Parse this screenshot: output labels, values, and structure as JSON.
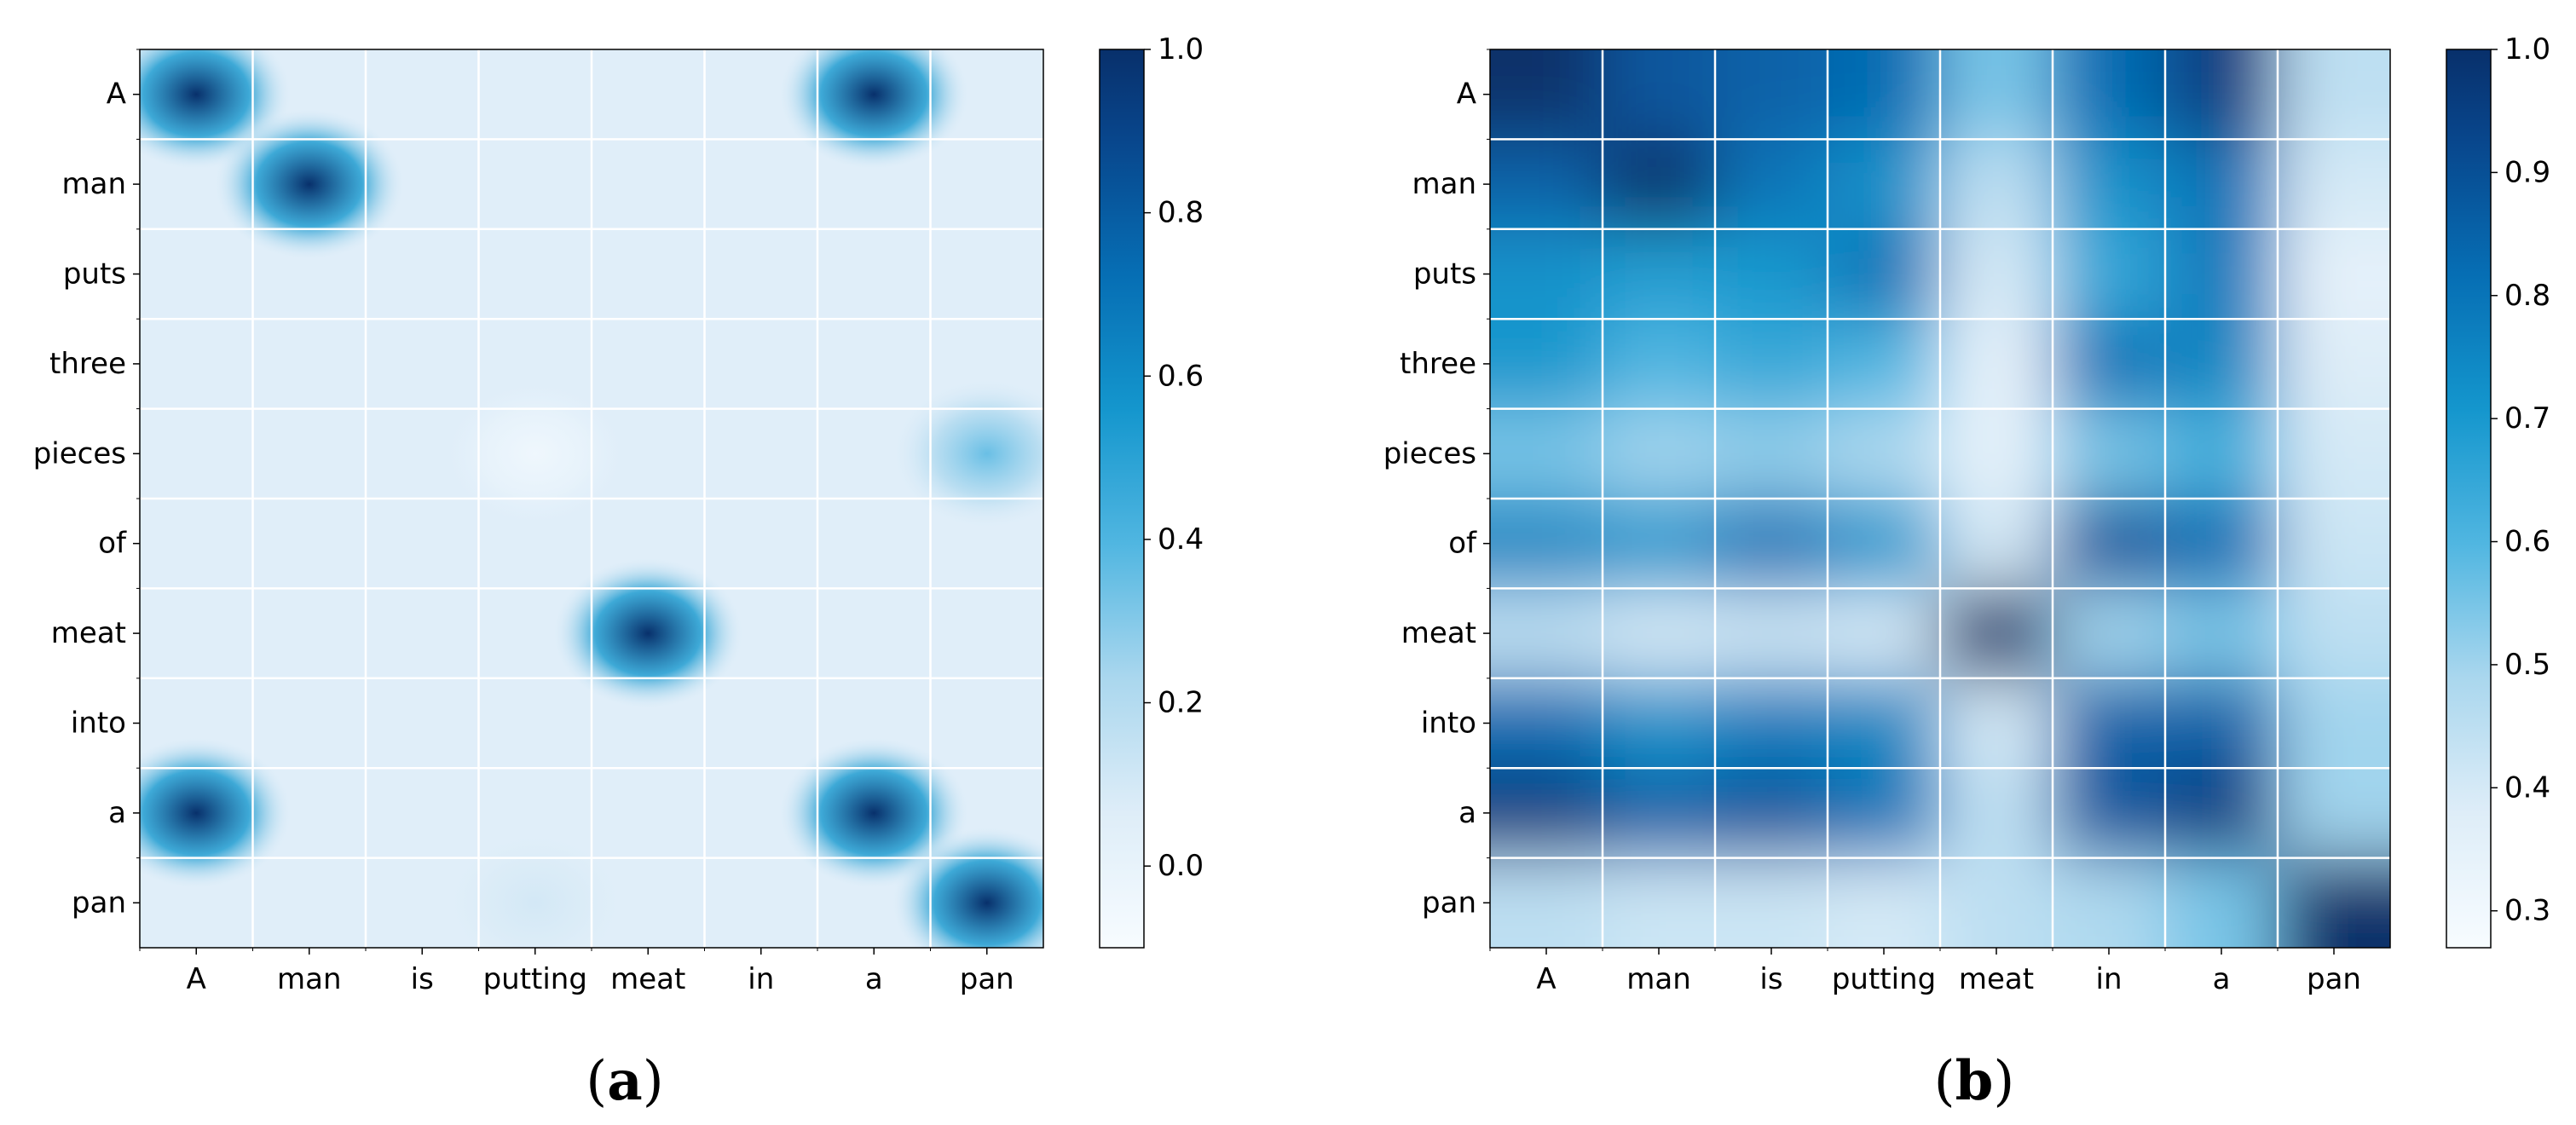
{
  "chart_data": [
    {
      "type": "heatmap",
      "panel_label": "a",
      "rows": [
        "A",
        "man",
        "puts",
        "three",
        "pieces",
        "of",
        "meat",
        "into",
        "a",
        "pan"
      ],
      "cols": [
        "A",
        "man",
        "is",
        "putting",
        "meat",
        "in",
        "a",
        "pan"
      ],
      "background": 0.05,
      "blobs": [
        {
          "row": 0,
          "col": 0,
          "value": 1.0
        },
        {
          "row": 0,
          "col": 6,
          "value": 1.0
        },
        {
          "row": 1,
          "col": 1,
          "value": 1.0
        },
        {
          "row": 4,
          "col": 3,
          "value": -0.05
        },
        {
          "row": 4,
          "col": 7,
          "value": 0.35
        },
        {
          "row": 6,
          "col": 4,
          "value": 1.0
        },
        {
          "row": 8,
          "col": 0,
          "value": 1.0
        },
        {
          "row": 8,
          "col": 6,
          "value": 1.0
        },
        {
          "row": 9,
          "col": 3,
          "value": 0.1
        },
        {
          "row": 9,
          "col": 7,
          "value": 1.0
        }
      ],
      "colorbar": {
        "min": -0.1,
        "max": 1.0,
        "ticks": [
          "1.0",
          "0.8",
          "0.6",
          "0.4",
          "0.2",
          "0.0"
        ]
      },
      "grid": true
    },
    {
      "type": "heatmap",
      "panel_label": "b",
      "rows": [
        "A",
        "man",
        "puts",
        "three",
        "pieces",
        "of",
        "meat",
        "into",
        "a",
        "pan"
      ],
      "cols": [
        "A",
        "man",
        "is",
        "putting",
        "meat",
        "in",
        "a",
        "pan"
      ],
      "values": [
        [
          1.0,
          0.88,
          0.85,
          0.82,
          0.55,
          0.82,
          0.95,
          0.45
        ],
        [
          0.85,
          1.0,
          0.8,
          0.72,
          0.45,
          0.72,
          0.8,
          0.4
        ],
        [
          0.72,
          0.68,
          0.7,
          0.8,
          0.4,
          0.65,
          0.78,
          0.35
        ],
        [
          0.7,
          0.6,
          0.65,
          0.6,
          0.35,
          0.8,
          0.75,
          0.38
        ],
        [
          0.55,
          0.5,
          0.52,
          0.48,
          0.35,
          0.55,
          0.62,
          0.4
        ],
        [
          0.75,
          0.7,
          0.8,
          0.7,
          0.4,
          0.88,
          0.82,
          0.42
        ],
        [
          0.45,
          0.4,
          0.42,
          0.4,
          1.0,
          0.5,
          0.55,
          0.45
        ],
        [
          0.82,
          0.72,
          0.78,
          0.75,
          0.4,
          0.85,
          0.85,
          0.5
        ],
        [
          0.95,
          0.85,
          0.88,
          0.8,
          0.45,
          0.88,
          0.95,
          0.5
        ],
        [
          0.45,
          0.42,
          0.42,
          0.4,
          0.45,
          0.48,
          0.55,
          1.0
        ]
      ],
      "colorbar": {
        "min": 0.27,
        "max": 1.0,
        "ticks": [
          "1.0",
          "0.9",
          "0.8",
          "0.7",
          "0.6",
          "0.5",
          "0.4",
          "0.3"
        ]
      },
      "grid": true
    }
  ]
}
